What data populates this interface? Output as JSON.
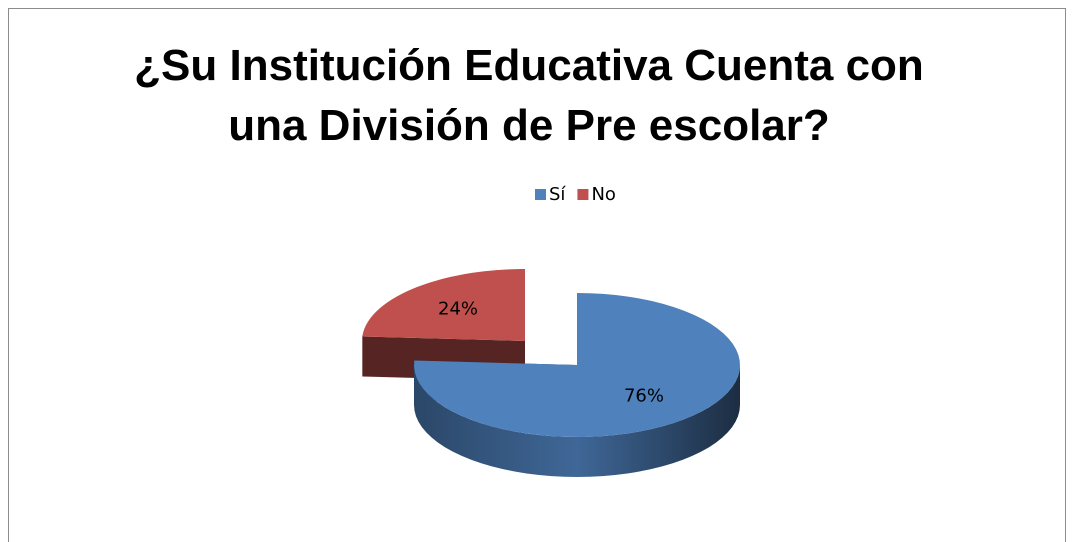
{
  "chart_data": {
    "type": "pie",
    "title": "¿Su Institución Educativa Cuenta con una División de Pre escolar?",
    "categories": [
      "Sí",
      "No"
    ],
    "values": [
      76,
      24
    ],
    "value_labels": [
      "76%",
      "24%"
    ],
    "colors": [
      "#4f81bd",
      "#c0504d"
    ],
    "legend": "top"
  }
}
